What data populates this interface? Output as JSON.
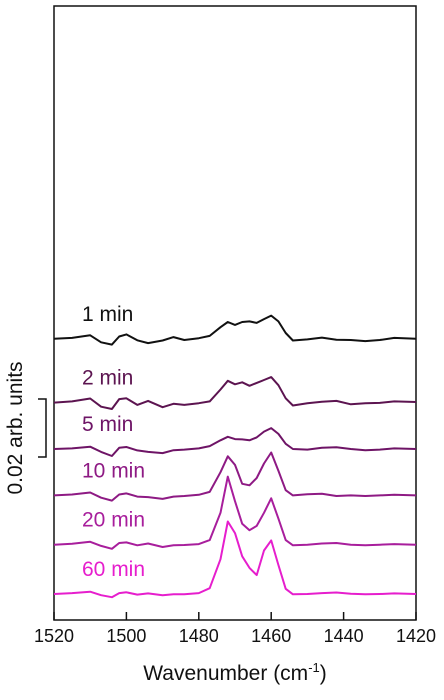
{
  "chart_data": {
    "type": "line",
    "title": "",
    "xlabel_main": "Wavenumber (cm",
    "xlabel_sup": "-1",
    "xlabel_tail": ")",
    "ylabel": "0.02 arb. units",
    "scale_bar_value": 0.02,
    "xlim": [
      1520,
      1420
    ],
    "x_reversed": true,
    "x_ticks": [
      1520,
      1500,
      1480,
      1460,
      1440,
      1420
    ],
    "y_ticks_shown": false,
    "grid": false,
    "legend": "none (traces labelled inline)",
    "stacked_offset": true,
    "x": [
      1520,
      1515,
      1510,
      1507,
      1504,
      1502,
      1500,
      1497,
      1494,
      1490,
      1487,
      1484,
      1480,
      1477,
      1474,
      1472,
      1470,
      1468,
      1466,
      1464,
      1462,
      1460,
      1458,
      1456,
      1454,
      1450,
      1446,
      1442,
      1438,
      1434,
      1430,
      1426,
      1420
    ],
    "series": [
      {
        "name": "1 min",
        "color": "#111111",
        "offset": 0.088,
        "values": [
          0.0,
          0.0003,
          0.0012,
          -0.0012,
          -0.002,
          0.0008,
          0.0015,
          -0.0005,
          -0.0015,
          -0.0006,
          0.0006,
          -0.0004,
          0.0002,
          0.001,
          0.004,
          0.0058,
          0.0048,
          0.0058,
          0.006,
          0.0055,
          0.0068,
          0.008,
          0.006,
          0.002,
          -0.0006,
          -0.0002,
          0.0004,
          -0.0003,
          -0.0004,
          -0.0008,
          -0.0004,
          0.0003,
          0.0
        ]
      },
      {
        "name": "2 min",
        "color": "#5c1450",
        "offset": 0.066,
        "values": [
          0.0,
          0.0004,
          0.0014,
          -0.0014,
          -0.0022,
          0.0012,
          0.0015,
          -0.0008,
          0.0006,
          -0.0016,
          -0.0004,
          -0.0008,
          -0.0002,
          0.0004,
          0.0045,
          0.0075,
          0.0063,
          0.007,
          0.0058,
          0.0068,
          0.0078,
          0.0088,
          0.006,
          0.0015,
          -0.001,
          -0.0002,
          0.0003,
          0.0006,
          -0.0006,
          -0.0002,
          -0.0001,
          0.0004,
          0.0002
        ]
      },
      {
        "name": "5 min",
        "color": "#6e1466",
        "offset": 0.05,
        "values": [
          0.0,
          0.0002,
          0.0008,
          -0.001,
          -0.0024,
          0.0004,
          0.0007,
          -0.0005,
          -0.001,
          -0.0014,
          -0.0004,
          -0.0002,
          0.0002,
          0.001,
          0.003,
          0.0042,
          0.0034,
          0.0033,
          0.003,
          0.004,
          0.006,
          0.0072,
          0.0052,
          0.0018,
          0.0,
          -0.0002,
          0.0004,
          0.0006,
          0.0,
          -0.0004,
          -0.0002,
          0.0002,
          0.0
        ]
      },
      {
        "name": "10 min",
        "color": "#8e1a84",
        "offset": 0.034,
        "values": [
          0.0,
          0.0003,
          0.001,
          -0.0008,
          -0.0018,
          0.0003,
          0.0007,
          -0.0004,
          -0.0006,
          -0.0012,
          -0.0004,
          -0.0002,
          0.0002,
          0.0012,
          0.008,
          0.0135,
          0.0105,
          0.004,
          0.0035,
          0.006,
          0.011,
          0.0148,
          0.0085,
          0.0018,
          0.0,
          0.0004,
          0.0006,
          -0.0002,
          0.0,
          -0.0002,
          0.0,
          0.0002,
          0.0
        ]
      },
      {
        "name": "20 min",
        "color": "#a81e9c",
        "offset": 0.017,
        "values": [
          0.0,
          0.0003,
          0.001,
          -0.0004,
          -0.0014,
          0.0006,
          0.0008,
          -0.0002,
          0.0004,
          -0.0008,
          -0.0002,
          -0.0001,
          0.0002,
          0.0016,
          0.011,
          0.0235,
          0.015,
          0.0072,
          0.005,
          0.0065,
          0.011,
          0.016,
          0.009,
          0.0016,
          -0.0002,
          0.0,
          0.0004,
          0.0006,
          0.0,
          -0.0002,
          0.0,
          0.0002,
          0.0
        ]
      },
      {
        "name": "60 min",
        "color": "#e61ecd",
        "offset": 0.0,
        "values": [
          0.0,
          0.0003,
          0.0008,
          -0.0004,
          -0.0011,
          0.0003,
          0.0006,
          -0.0002,
          0.0002,
          -0.0004,
          -0.0001,
          -0.0001,
          0.0003,
          0.002,
          0.012,
          0.025,
          0.021,
          0.013,
          0.009,
          0.0065,
          0.015,
          0.0185,
          0.01,
          0.0018,
          -0.0001,
          0.0,
          0.0003,
          0.0005,
          0.0001,
          -0.0001,
          0.0,
          0.0002,
          0.0
        ]
      }
    ]
  }
}
